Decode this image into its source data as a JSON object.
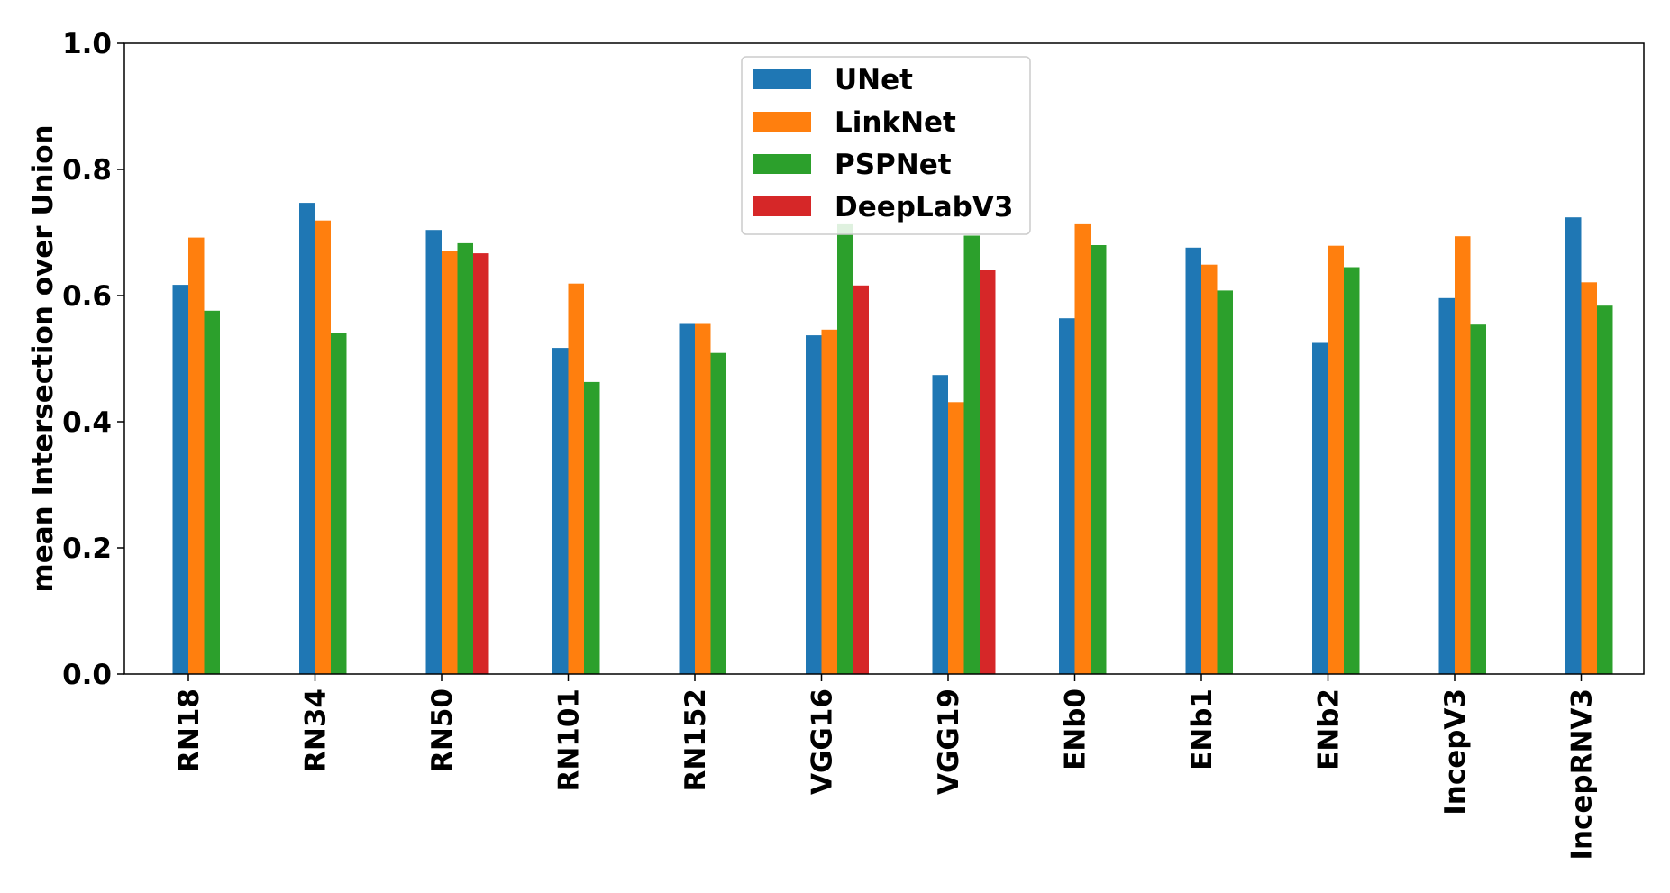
{
  "chart_data": {
    "type": "bar",
    "ylabel": "mean Intersection over Union",
    "xlabel": "",
    "ylim": [
      0,
      1.0
    ],
    "yticks": [
      "0.0",
      "0.2",
      "0.4",
      "0.6",
      "0.8",
      "1.0"
    ],
    "legend_position": "top-center",
    "categories": [
      "RN18",
      "RN34",
      "RN50",
      "RN101",
      "RN152",
      "VGG16",
      "VGG19",
      "ENb0",
      "ENb1",
      "ENb2",
      "IncepV3",
      "IncepRNV3"
    ],
    "series": [
      {
        "name": "UNet",
        "color": "#1f77b4",
        "values": [
          0.617,
          0.747,
          0.704,
          0.517,
          0.555,
          0.537,
          0.474,
          0.564,
          0.676,
          0.525,
          0.596,
          0.724
        ]
      },
      {
        "name": "LinkNet",
        "color": "#ff7f0e",
        "values": [
          0.692,
          0.719,
          0.671,
          0.619,
          0.555,
          0.546,
          0.431,
          0.713,
          0.649,
          0.679,
          0.694,
          0.621
        ]
      },
      {
        "name": "PSPNet",
        "color": "#2ca02c",
        "values": [
          0.576,
          0.54,
          0.683,
          0.463,
          0.509,
          0.713,
          0.695,
          0.68,
          0.608,
          0.645,
          0.554,
          0.584
        ]
      },
      {
        "name": "DeepLabV3",
        "color": "#d62728",
        "values": [
          null,
          null,
          0.667,
          null,
          null,
          0.616,
          0.64,
          null,
          null,
          null,
          null,
          null
        ]
      }
    ]
  }
}
